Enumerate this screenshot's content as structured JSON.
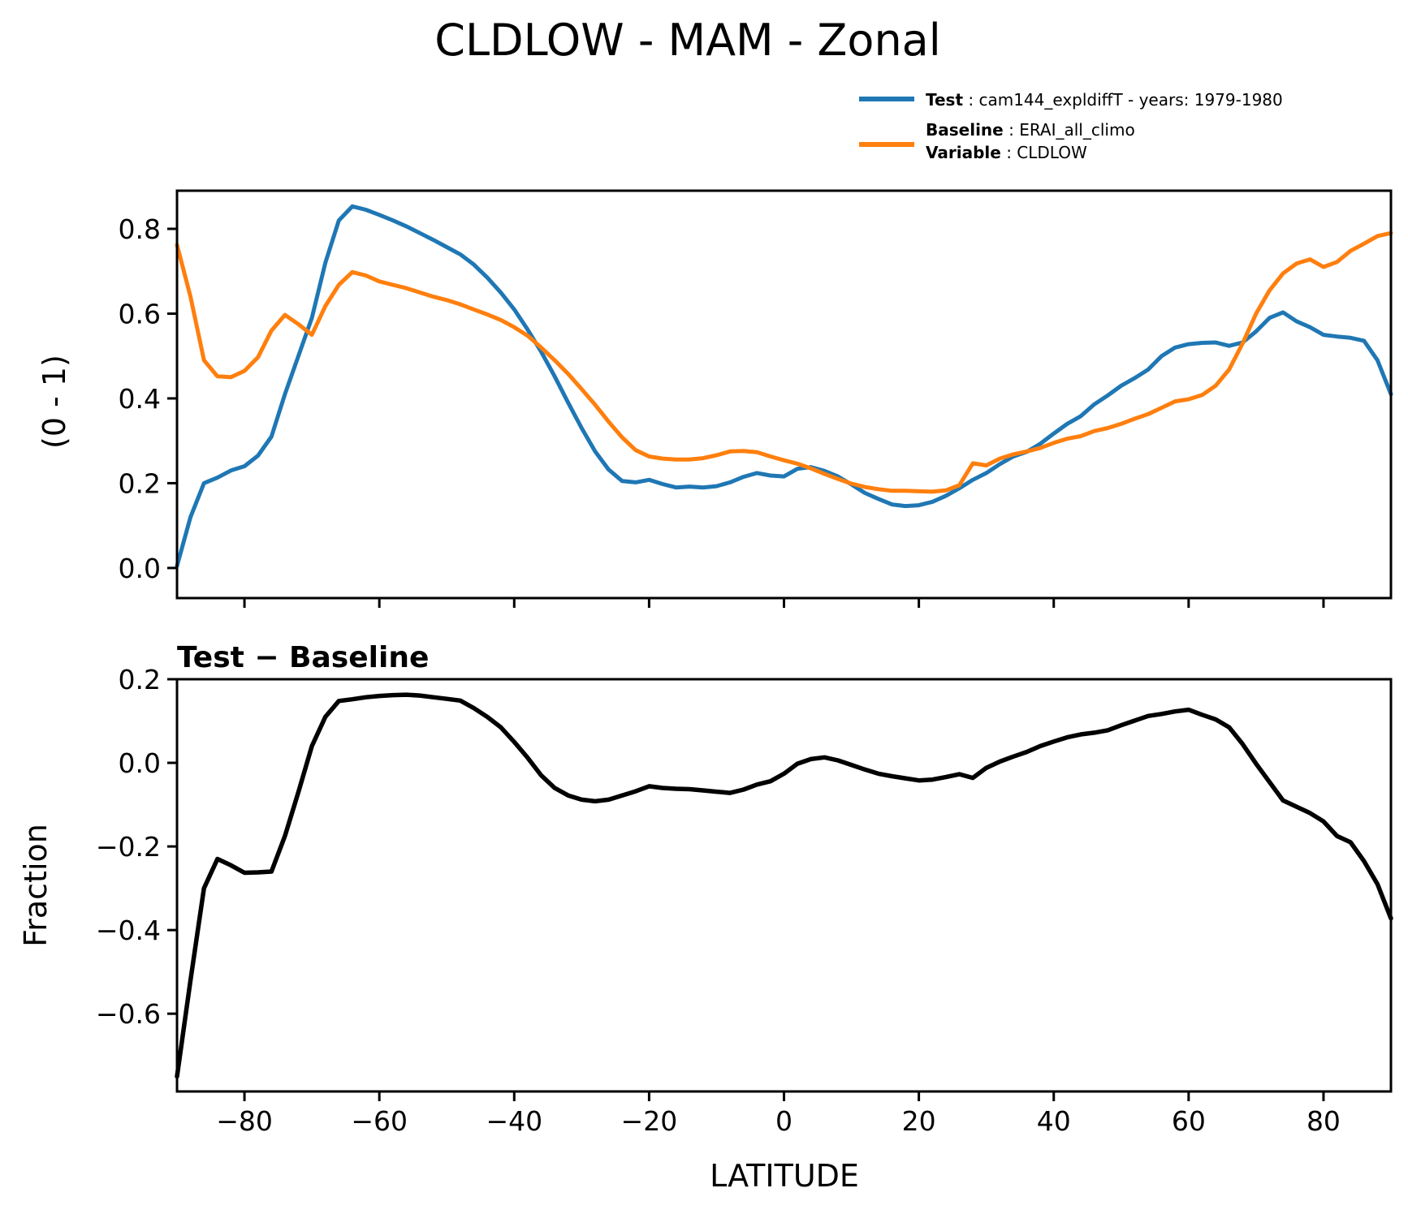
{
  "title": "CLDLOW - MAM - Zonal",
  "legend": {
    "test": {
      "bold": "Test",
      "rest": " : cam144_expldiffT - years: 1979-1980"
    },
    "baseline": {
      "bold": "Baseline",
      "rest": " : ERAI_all_climo"
    },
    "variable": {
      "bold": "Variable",
      "rest": " : CLDLOW"
    }
  },
  "colors": {
    "test": "#1f77b4",
    "baseline": "#ff7f0e",
    "diff": "#000000"
  },
  "chart_data": {
    "type": "line",
    "title": "CLDLOW - MAM - Zonal",
    "xlabel": "LATITUDE",
    "xlim": [
      -90,
      90
    ],
    "xticks": [
      -80,
      -60,
      -40,
      -20,
      0,
      20,
      40,
      60,
      80
    ],
    "xticklabels": [
      "−80",
      "−60",
      "−40",
      "−20",
      "0",
      "20",
      "40",
      "60",
      "80"
    ],
    "grid": false,
    "legend_position": "upper right, above top axes",
    "x": [
      -90,
      -88,
      -86,
      -84,
      -82,
      -80,
      -78,
      -76,
      -74,
      -72,
      -70,
      -68,
      -66,
      -64,
      -62,
      -60,
      -58,
      -56,
      -54,
      -52,
      -50,
      -48,
      -46,
      -44,
      -42,
      -40,
      -38,
      -36,
      -34,
      -32,
      -30,
      -28,
      -26,
      -24,
      -22,
      -20,
      -18,
      -16,
      -14,
      -12,
      -10,
      -8,
      -6,
      -4,
      -2,
      0,
      2,
      4,
      6,
      8,
      10,
      12,
      14,
      16,
      18,
      20,
      22,
      24,
      26,
      28,
      30,
      32,
      34,
      36,
      38,
      40,
      42,
      44,
      46,
      48,
      50,
      52,
      54,
      56,
      58,
      60,
      62,
      64,
      66,
      68,
      70,
      72,
      74,
      76,
      78,
      80,
      82,
      84,
      86,
      88,
      90
    ],
    "panels": [
      {
        "id": "top",
        "ylabel": "(0 - 1)",
        "ylim": [
          -0.071,
          0.89
        ],
        "yticks": [
          0.0,
          0.2,
          0.4,
          0.6,
          0.8
        ],
        "yticklabels": [
          "0.0",
          "0.2",
          "0.4",
          "0.6",
          "0.8"
        ],
        "series_keys": [
          "test",
          "baseline"
        ]
      },
      {
        "id": "bottom",
        "title": "Test − Baseline",
        "ylabel": "Fraction",
        "xlabel": "LATITUDE",
        "ylim": [
          -0.786,
          0.2
        ],
        "yticks": [
          0.2,
          0.0,
          -0.2,
          -0.4,
          -0.6
        ],
        "yticklabels": [
          "0.2",
          "0.0",
          "−0.2",
          "−0.4",
          "−0.6"
        ],
        "series_keys": [
          "diff"
        ]
      }
    ],
    "series": [
      {
        "key": "test",
        "name": "Test : cam144_expldiffT - years: 1979-1980",
        "color": "#1f77b4",
        "values": [
          0.005,
          0.12,
          0.2,
          0.213,
          0.23,
          0.24,
          0.265,
          0.31,
          0.41,
          0.5,
          0.59,
          0.72,
          0.82,
          0.853,
          0.845,
          0.833,
          0.82,
          0.806,
          0.79,
          0.774,
          0.757,
          0.74,
          0.716,
          0.685,
          0.65,
          0.61,
          0.562,
          0.51,
          0.452,
          0.39,
          0.33,
          0.275,
          0.232,
          0.205,
          0.202,
          0.208,
          0.198,
          0.19,
          0.192,
          0.19,
          0.193,
          0.202,
          0.215,
          0.224,
          0.218,
          0.216,
          0.234,
          0.238,
          0.229,
          0.216,
          0.197,
          0.177,
          0.163,
          0.15,
          0.146,
          0.148,
          0.156,
          0.17,
          0.188,
          0.208,
          0.224,
          0.245,
          0.263,
          0.274,
          0.293,
          0.317,
          0.34,
          0.358,
          0.386,
          0.407,
          0.43,
          0.448,
          0.468,
          0.5,
          0.52,
          0.528,
          0.531,
          0.532,
          0.524,
          0.532,
          0.558,
          0.59,
          0.603,
          0.582,
          0.568,
          0.55,
          0.546,
          0.543,
          0.536,
          0.49,
          0.41
        ]
      },
      {
        "key": "baseline",
        "name": "Baseline : ERAI_all_climo — Variable : CLDLOW",
        "color": "#ff7f0e",
        "values": [
          0.762,
          0.64,
          0.49,
          0.452,
          0.45,
          0.465,
          0.497,
          0.56,
          0.597,
          0.575,
          0.55,
          0.618,
          0.668,
          0.698,
          0.69,
          0.676,
          0.668,
          0.66,
          0.65,
          0.64,
          0.632,
          0.622,
          0.61,
          0.598,
          0.585,
          0.568,
          0.548,
          0.52,
          0.49,
          0.458,
          0.422,
          0.385,
          0.345,
          0.308,
          0.278,
          0.263,
          0.258,
          0.256,
          0.256,
          0.259,
          0.266,
          0.275,
          0.276,
          0.273,
          0.263,
          0.254,
          0.246,
          0.235,
          0.222,
          0.21,
          0.199,
          0.191,
          0.186,
          0.182,
          0.182,
          0.181,
          0.18,
          0.183,
          0.195,
          0.247,
          0.242,
          0.258,
          0.268,
          0.275,
          0.283,
          0.295,
          0.305,
          0.311,
          0.323,
          0.33,
          0.34,
          0.352,
          0.363,
          0.378,
          0.393,
          0.398,
          0.408,
          0.43,
          0.468,
          0.53,
          0.6,
          0.655,
          0.695,
          0.718,
          0.728,
          0.71,
          0.722,
          0.748,
          0.765,
          0.783,
          0.79
        ]
      },
      {
        "key": "diff",
        "name": "Test − Baseline",
        "color": "#000000",
        "values": [
          -0.75,
          -0.52,
          -0.3,
          -0.23,
          -0.245,
          -0.263,
          -0.262,
          -0.26,
          -0.175,
          -0.07,
          0.04,
          0.11,
          0.148,
          0.152,
          0.157,
          0.16,
          0.162,
          0.163,
          0.161,
          0.157,
          0.153,
          0.149,
          0.131,
          0.11,
          0.085,
          0.05,
          0.012,
          -0.03,
          -0.06,
          -0.078,
          -0.088,
          -0.092,
          -0.088,
          -0.078,
          -0.068,
          -0.056,
          -0.06,
          -0.062,
          -0.063,
          -0.066,
          -0.069,
          -0.072,
          -0.064,
          -0.052,
          -0.044,
          -0.026,
          -0.002,
          0.009,
          0.013,
          0.006,
          -0.005,
          -0.016,
          -0.026,
          -0.032,
          -0.037,
          -0.042,
          -0.04,
          -0.034,
          -0.027,
          -0.036,
          -0.012,
          0.003,
          0.015,
          0.026,
          0.04,
          0.051,
          0.061,
          0.068,
          0.072,
          0.078,
          0.09,
          0.101,
          0.112,
          0.117,
          0.123,
          0.127,
          0.115,
          0.104,
          0.085,
          0.045,
          -0.002,
          -0.046,
          -0.09,
          -0.105,
          -0.12,
          -0.14,
          -0.175,
          -0.19,
          -0.235,
          -0.29,
          -0.372
        ]
      }
    ]
  }
}
